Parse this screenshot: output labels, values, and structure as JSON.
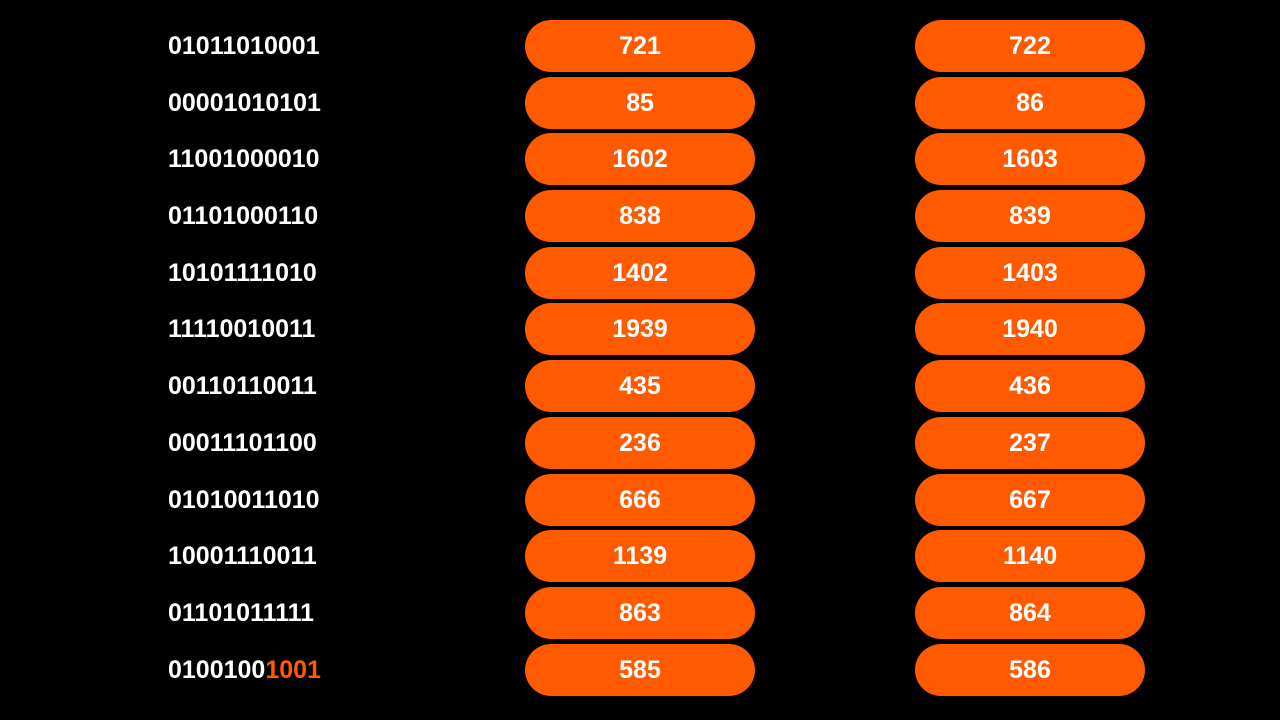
{
  "accent_color": "#ff5a00",
  "rows": [
    {
      "binary": "01011010001",
      "binary_highlight": "",
      "decimal": "721",
      "next": "722"
    },
    {
      "binary": "00001010101",
      "binary_highlight": "",
      "decimal": "85",
      "next": "86"
    },
    {
      "binary": "11001000010",
      "binary_highlight": "",
      "decimal": "1602",
      "next": "1603"
    },
    {
      "binary": "01101000110",
      "binary_highlight": "",
      "decimal": "838",
      "next": "839"
    },
    {
      "binary": "10101111010",
      "binary_highlight": "",
      "decimal": "1402",
      "next": "1403"
    },
    {
      "binary": "11110010011",
      "binary_highlight": "",
      "decimal": "1939",
      "next": "1940"
    },
    {
      "binary": "00110110011",
      "binary_highlight": "",
      "decimal": "435",
      "next": "436"
    },
    {
      "binary": "00011101100",
      "binary_highlight": "",
      "decimal": "236",
      "next": "237"
    },
    {
      "binary": "01010011010",
      "binary_highlight": "",
      "decimal": "666",
      "next": "667"
    },
    {
      "binary": "10001110011",
      "binary_highlight": "",
      "decimal": "1139",
      "next": "1140"
    },
    {
      "binary": "01101011111",
      "binary_highlight": "",
      "decimal": "863",
      "next": "864"
    },
    {
      "binary": "0100100",
      "binary_highlight": "1001",
      "decimal": "585",
      "next": "586"
    }
  ]
}
